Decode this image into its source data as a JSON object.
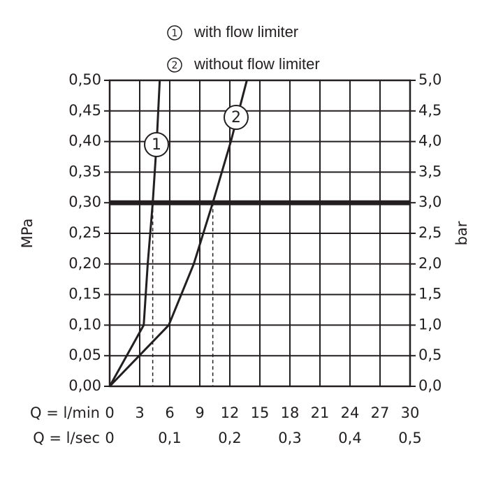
{
  "chart_data": {
    "type": "line",
    "series": [
      {
        "name": "with flow limiter",
        "label": "1",
        "color": "#231f20",
        "x": [
          0,
          3.4,
          3.6,
          3.8,
          4.3,
          4.7,
          5.0
        ],
        "values": [
          0,
          0.1,
          0.15,
          0.2,
          0.3,
          0.4,
          0.5
        ]
      },
      {
        "name": "without flow limiter",
        "label": "2",
        "color": "#231f20",
        "x": [
          0,
          5.9,
          8.4,
          10.3,
          12.1,
          13.7
        ],
        "values": [
          0,
          0.1,
          0.2,
          0.3,
          0.4,
          0.5
        ]
      }
    ],
    "reference_line": 0.3,
    "xlim": [
      0,
      30
    ],
    "xticks": [
      0,
      3,
      6,
      9,
      12,
      15,
      18,
      21,
      24,
      27,
      30
    ],
    "xlabel": "Q = l/min",
    "x2lim": [
      0,
      0.5
    ],
    "x2ticks": [
      0,
      {
        "value": 0.1,
        "label": "0,1"
      },
      {
        "value": 0.2,
        "label": "0,2"
      },
      {
        "value": 0.3,
        "label": "0,3"
      },
      {
        "value": 0.4,
        "label": "0,4"
      },
      {
        "value": 0.5,
        "label": "0,5"
      }
    ],
    "x2label": "Q = l/sec",
    "ylim": [
      0,
      0.5
    ],
    "yticks": [
      {
        "value": 0,
        "label": "0,00"
      },
      {
        "value": 0.05,
        "label": "0,05"
      },
      {
        "value": 0.1,
        "label": "0,10"
      },
      {
        "value": 0.15,
        "label": "0,15"
      },
      {
        "value": 0.2,
        "label": "0,20"
      },
      {
        "value": 0.25,
        "label": "0,25"
      },
      {
        "value": 0.3,
        "label": "0,30"
      },
      {
        "value": 0.35,
        "label": "0,35"
      },
      {
        "value": 0.4,
        "label": "0,40"
      },
      {
        "value": 0.45,
        "label": "0,45"
      },
      {
        "value": 0.5,
        "label": "0,50"
      }
    ],
    "ylabel": "MPa",
    "y2lim": [
      0,
      5
    ],
    "y2ticks": [
      {
        "value": 0,
        "label": "0,0"
      },
      {
        "value": 0.5,
        "label": "0,5"
      },
      {
        "value": 1,
        "label": "1,0"
      },
      {
        "value": 1.5,
        "label": "1,5"
      },
      {
        "value": 2,
        "label": "2,0"
      },
      {
        "value": 2.5,
        "label": "2,5"
      },
      {
        "value": 3,
        "label": "3,0"
      },
      {
        "value": 3.5,
        "label": "3,5"
      },
      {
        "value": 4,
        "label": "4,0"
      },
      {
        "value": 4.5,
        "label": "4,5"
      },
      {
        "value": 5,
        "label": "5,0"
      }
    ],
    "y2label": "bar",
    "grid": true
  }
}
